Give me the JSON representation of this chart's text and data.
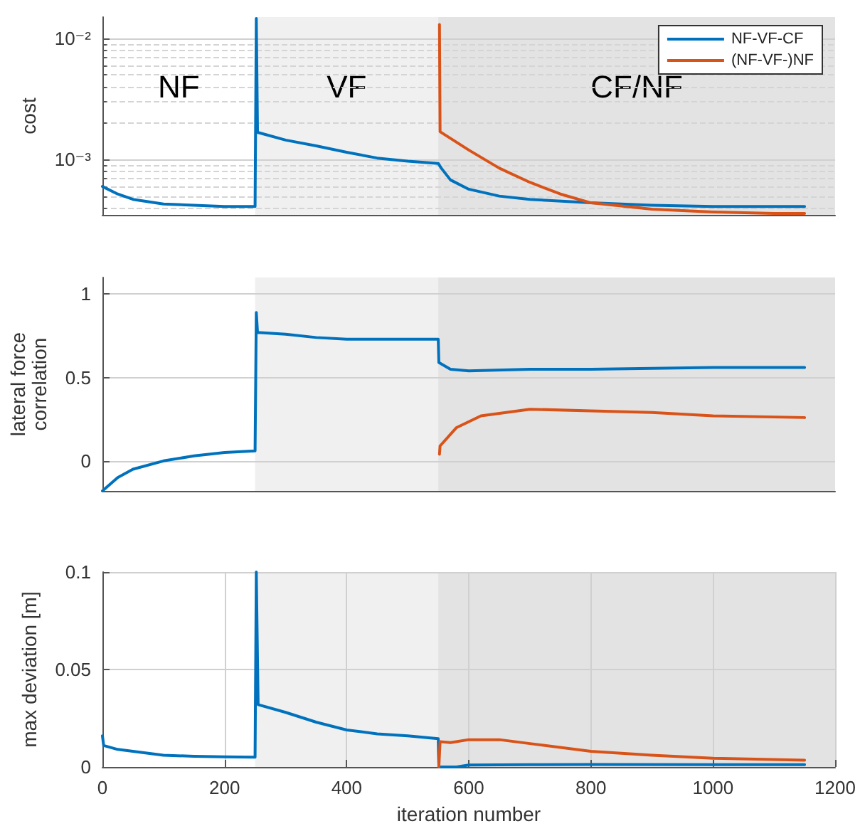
{
  "chart_data": [
    {
      "type": "line",
      "ylabel": "cost",
      "log": true,
      "xlim": [
        0,
        1200
      ],
      "xticks": [
        0,
        200,
        400,
        600,
        800,
        1000,
        1200
      ],
      "ylim": [
        0.00035,
        0.015
      ],
      "yticks": [
        {
          "value": 0.001,
          "label": "10⁻³"
        },
        {
          "value": 0.01,
          "label": "10⁻²"
        }
      ],
      "grid": "y",
      "legend": "top right",
      "tick_labels": "y",
      "annotations": [
        "NF"
      ],
      "bands": [
        {
          "axis": "x",
          "from": 250,
          "to": 550,
          "label": "VF",
          "color": "#f0f0f0"
        },
        {
          "axis": "x",
          "from": 550,
          "to": 1200,
          "label": "CF/NF",
          "color": "#e3e3e3"
        }
      ],
      "series": [
        {
          "name": "NF-VF-CF",
          "color": "#0072bd",
          "x": [
            0,
            25,
            50,
            100,
            150,
            200,
            250,
            252,
            254,
            300,
            350,
            400,
            450,
            500,
            550,
            555,
            570,
            600,
            650,
            700,
            800,
            900,
            1000,
            1100,
            1150
          ],
          "values": [
            0.0006,
            0.00052,
            0.00047,
            0.00043,
            0.00042,
            0.00041,
            0.00041,
            0.0146,
            0.00168,
            0.00145,
            0.0013,
            0.00115,
            0.00103,
            0.00097,
            0.00093,
            0.00085,
            0.00068,
            0.00057,
            0.0005,
            0.00047,
            0.00044,
            0.00042,
            0.00041,
            0.00041,
            0.00041
          ]
        },
        {
          "name": "(NF-VF-)NF",
          "color": "#d95319",
          "x": [
            552,
            553,
            600,
            650,
            700,
            750,
            800,
            900,
            1000,
            1100,
            1150
          ],
          "values": [
            0.013,
            0.0017,
            0.0012,
            0.00085,
            0.00065,
            0.00052,
            0.00044,
            0.00039,
            0.00037,
            0.00036,
            0.00036
          ]
        }
      ]
    },
    {
      "type": "line",
      "ylabel": "lateral force\ncorrelation",
      "xlim": [
        0,
        1200
      ],
      "xticks": [
        0,
        200,
        400,
        600,
        800,
        1000,
        1200
      ],
      "ylim": [
        -0.18,
        1.1
      ],
      "yticks": [
        0,
        0.5,
        1
      ],
      "grid": "y",
      "tick_labels": "y",
      "bands": [
        {
          "axis": "x",
          "from": 250,
          "to": 550,
          "color": "#f0f0f0"
        },
        {
          "axis": "x",
          "from": 550,
          "to": 1200,
          "color": "#e3e3e3"
        }
      ],
      "series": [
        {
          "color": "#0072bd",
          "x": [
            0,
            25,
            50,
            100,
            150,
            200,
            250,
            252,
            254,
            300,
            350,
            400,
            450,
            500,
            550,
            551,
            570,
            600,
            700,
            800,
            1000,
            1150
          ],
          "values": [
            -0.18,
            -0.1,
            -0.05,
            0.0,
            0.03,
            0.05,
            0.06,
            0.89,
            0.77,
            0.76,
            0.74,
            0.73,
            0.73,
            0.73,
            0.73,
            0.59,
            0.55,
            0.54,
            0.55,
            0.55,
            0.56,
            0.56
          ]
        },
        {
          "color": "#d95319",
          "x": [
            552,
            553,
            580,
            620,
            700,
            800,
            900,
            1000,
            1150
          ],
          "values": [
            0.04,
            0.09,
            0.2,
            0.27,
            0.31,
            0.3,
            0.29,
            0.27,
            0.26
          ]
        }
      ]
    },
    {
      "type": "line",
      "xlabel": "iteration number",
      "ylabel": "max deviation [m]",
      "xlim": [
        0,
        1200
      ],
      "xticks": [
        0,
        200,
        400,
        600,
        800,
        1000,
        1200
      ],
      "ylim": [
        0,
        0.1
      ],
      "yticks": [
        0,
        0.05,
        0.1
      ],
      "grid": true,
      "bands": [
        {
          "axis": "x",
          "from": 250,
          "to": 550,
          "color": "#f0f0f0"
        },
        {
          "axis": "x",
          "from": 550,
          "to": 1200,
          "color": "#e3e3e3"
        }
      ],
      "series": [
        {
          "color": "#0072bd",
          "x": [
            0,
            2,
            25,
            50,
            100,
            150,
            200,
            250,
            252,
            255,
            300,
            350,
            400,
            450,
            500,
            550,
            551,
            580,
            600,
            700,
            800,
            1000,
            1150
          ],
          "values": [
            0.016,
            0.011,
            0.009,
            0.008,
            0.006,
            0.0055,
            0.0052,
            0.005,
            0.1,
            0.032,
            0.028,
            0.023,
            0.019,
            0.017,
            0.016,
            0.0145,
            0,
            0,
            0.001,
            0.0012,
            0.0013,
            0.0012,
            0.0012
          ]
        },
        {
          "color": "#d95319",
          "x": [
            551,
            553,
            570,
            600,
            650,
            700,
            800,
            900,
            1000,
            1150
          ],
          "values": [
            0,
            0.013,
            0.0125,
            0.014,
            0.014,
            0.012,
            0.008,
            0.006,
            0.0045,
            0.0035
          ]
        }
      ]
    }
  ]
}
